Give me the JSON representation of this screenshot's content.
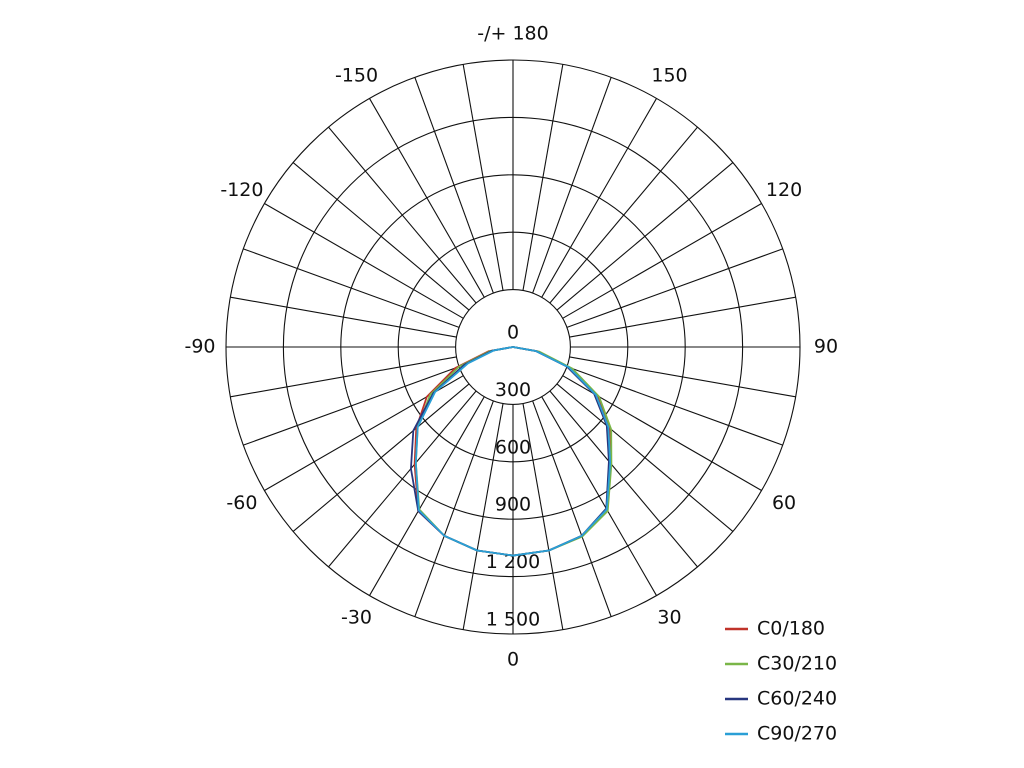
{
  "chart_data": {
    "type": "polar",
    "x": [
      -90,
      -80,
      -70,
      -60,
      -50,
      -40,
      -30,
      -20,
      -10,
      0,
      10,
      20,
      30,
      40,
      50,
      60,
      70,
      80,
      90
    ],
    "series": [
      {
        "name": "C0/180",
        "color": "#c0332a",
        "values": [
          0,
          130,
          320,
          520,
          660,
          800,
          990,
          1050,
          1080,
          1090,
          1080,
          1050,
          980,
          790,
          660,
          510,
          320,
          130,
          0
        ]
      },
      {
        "name": "C30/210",
        "color": "#7ab648",
        "values": [
          0,
          120,
          300,
          500,
          650,
          790,
          980,
          1050,
          1080,
          1090,
          1080,
          1055,
          990,
          800,
          670,
          520,
          330,
          140,
          0
        ]
      },
      {
        "name": "C60/240",
        "color": "#27367f",
        "values": [
          0,
          110,
          270,
          480,
          680,
          830,
          990,
          1050,
          1080,
          1090,
          1080,
          1050,
          975,
          780,
          640,
          490,
          300,
          120,
          0
        ]
      },
      {
        "name": "C90/270",
        "color": "#2a9fd6",
        "values": [
          0,
          100,
          250,
          470,
          650,
          790,
          985,
          1050,
          1080,
          1090,
          1080,
          1050,
          980,
          790,
          650,
          500,
          310,
          120,
          0
        ]
      }
    ],
    "xticks": [
      0,
      30,
      60,
      90,
      120,
      150,
      {
        "value": 180,
        "label": "-/+ 180"
      },
      -150,
      -120,
      -90,
      -60,
      -30
    ],
    "ylim": [
      0,
      1500
    ],
    "yticks": [
      0,
      300,
      600,
      900,
      {
        "value": 1200,
        "label": "1 200"
      },
      {
        "value": 1500,
        "label": "1 500"
      }
    ],
    "grid": true,
    "legend": "lower-right"
  }
}
